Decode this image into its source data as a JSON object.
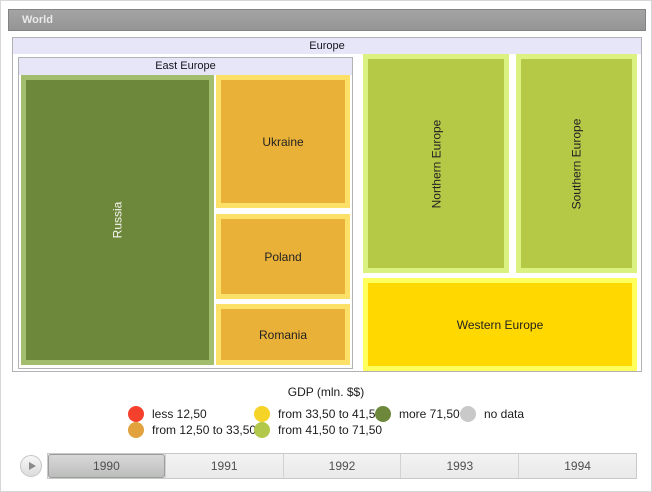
{
  "header": {
    "world_label": "World"
  },
  "treemap": {
    "europe": "Europe",
    "east_europe": "East Europe",
    "russia": "Russia",
    "ukraine": "Ukraine",
    "poland": "Poland",
    "romania": "Romania",
    "northern": "Northern Europe",
    "southern": "Southern Europe",
    "western": "Western Europe"
  },
  "chart_data": {
    "type": "treemap",
    "title": "GDP (mln. $$)",
    "root": "World",
    "visible_level": "Europe",
    "groups": [
      {
        "label": "East Europe",
        "children": [
          {
            "label": "Russia",
            "color": "#6d883b",
            "category": "more 71,50"
          },
          {
            "label": "Ukraine",
            "color": "#eab138",
            "category": "from 12,50 to 33,50"
          },
          {
            "label": "Poland",
            "color": "#eab138",
            "category": "from 12,50 to 33,50"
          },
          {
            "label": "Romania",
            "color": "#eab138",
            "category": "from 12,50 to 33,50"
          }
        ]
      },
      {
        "label": "Northern Europe",
        "color": "#b5c947",
        "category": "from 41,50 to 71,50"
      },
      {
        "label": "Southern Europe",
        "color": "#b5c947",
        "category": "from 41,50 to 71,50"
      },
      {
        "label": "Western Europe",
        "color": "#ffd800",
        "category": "from 33,50 to 41,50"
      }
    ],
    "legend_position": "bottom",
    "year_shown": "1990"
  },
  "legend": {
    "title": "GDP (mln. $$)",
    "items": [
      {
        "label": "less 12,50",
        "color": "#f4402d"
      },
      {
        "label": "from 12,50 to 33,50",
        "color": "#e2a33e"
      },
      {
        "label": "from 33,50 to 41,50",
        "color": "#f5d327"
      },
      {
        "label": "from 41,50 to 71,50",
        "color": "#b2c84a"
      },
      {
        "label": "more 71,50",
        "color": "#6d883b"
      },
      {
        "label": "no data",
        "color": "#c9c9c9"
      }
    ]
  },
  "timeline": {
    "years": [
      "1990",
      "1991",
      "1992",
      "1993",
      "1994"
    ],
    "selected": "1990"
  }
}
